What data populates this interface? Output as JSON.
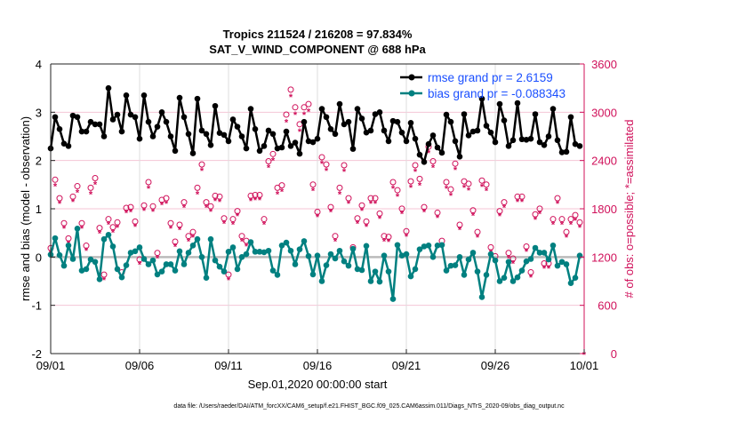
{
  "chart_data": {
    "type": "line",
    "title": "Tropics 211524 / 216208 = 97.834%",
    "subtitle": "SAT_V_WIND_COMPONENT @ 688 hPa",
    "xlabel": "Sep.01,2020 00:00:00 start",
    "ylabel": "rmse and bias (model - observation)",
    "y2label": "# of obs: o=possible; *=assimilated",
    "footer": "data file: /Users/raeder/DAI/ATM_forcXX/CAM6_setup/f.e21.FHIST_BGC.f09_025.CAM6assim.011/Diags_NTrS_2020-09/obs_diag_output.nc",
    "x_unit": "days since 09/01 (6-hourly)",
    "xlim": [
      0,
      30
    ],
    "ylim": [
      -2,
      4
    ],
    "y2lim": [
      0,
      3600
    ],
    "xticks": [
      {
        "v": 0,
        "label": "09/01"
      },
      {
        "v": 5,
        "label": "09/06"
      },
      {
        "v": 10,
        "label": "09/11"
      },
      {
        "v": 15,
        "label": "09/16"
      },
      {
        "v": 20,
        "label": "09/21"
      },
      {
        "v": 25,
        "label": "09/26"
      },
      {
        "v": 30,
        "label": "10/01"
      }
    ],
    "yticks": [
      "-2",
      "-1",
      "0",
      "1",
      "2",
      "3",
      "4"
    ],
    "y2ticks": [
      "0",
      "600",
      "1200",
      "1800",
      "2400",
      "3000",
      "3600"
    ],
    "grid": true,
    "legend_position": "top-right",
    "colors": {
      "rmse": "#000000",
      "bias": "#008080",
      "obs": "#d0105a",
      "legend_text": "#1a4fff",
      "zero_line": "#bbbbbb",
      "grid_h": "#f5c6d6",
      "grid_v": "#dddddd"
    },
    "series": [
      {
        "name": "rmse grand pr = 2.6159",
        "key": "rmse",
        "values": [
          2.25,
          2.9,
          2.65,
          2.35,
          2.3,
          2.93,
          2.9,
          2.6,
          2.6,
          2.8,
          2.75,
          2.75,
          2.5,
          3.5,
          2.85,
          2.95,
          2.6,
          3.35,
          2.95,
          2.9,
          2.45,
          3.35,
          2.8,
          2.5,
          2.7,
          3.0,
          2.8,
          2.5,
          2.2,
          3.3,
          2.9,
          2.55,
          2.15,
          3.28,
          2.62,
          2.55,
          2.32,
          3.13,
          2.57,
          2.53,
          2.4,
          2.85,
          2.7,
          2.5,
          2.25,
          3.07,
          2.65,
          2.2,
          2.3,
          2.62,
          2.55,
          2.25,
          2.27,
          2.6,
          2.3,
          2.37,
          2.14,
          2.8,
          2.4,
          2.38,
          2.45,
          3.07,
          2.9,
          2.65,
          2.55,
          3.17,
          2.75,
          2.8,
          2.24,
          3.07,
          2.87,
          2.58,
          2.62,
          2.96,
          3.0,
          2.62,
          2.4,
          2.82,
          2.8,
          2.58,
          2.4,
          2.78,
          2.45,
          2.12,
          1.97,
          2.34,
          2.52,
          2.27,
          2.16,
          2.95,
          2.8,
          2.4,
          2.08,
          2.96,
          2.52,
          2.6,
          2.62,
          3.28,
          2.72,
          2.58,
          2.38,
          3.17,
          2.83,
          2.3,
          2.42,
          3.19,
          2.44,
          2.43,
          2.45,
          2.96,
          2.38,
          2.32,
          2.5,
          3.07,
          2.42,
          2.17,
          2.18,
          2.9,
          2.34,
          2.3
        ]
      },
      {
        "name": "bias grand pr = -0.088343",
        "key": "bias",
        "values": [
          0.05,
          0.39,
          0.04,
          -0.18,
          0.24,
          -0.04,
          0.59,
          -0.28,
          -0.25,
          -0.05,
          -0.1,
          -0.46,
          0.37,
          0.46,
          0.22,
          -0.25,
          -0.42,
          -0.17,
          0.09,
          0.12,
          0.2,
          -0.04,
          -0.15,
          -0.07,
          -0.36,
          -0.3,
          -0.15,
          -0.15,
          -0.28,
          0.12,
          -0.15,
          0.09,
          0.24,
          0.37,
          0,
          -0.43,
          0.37,
          -0.07,
          -0.2,
          -0.3,
          0.11,
          0.2,
          -0.25,
          0,
          0.06,
          0.31,
          0.11,
          0.11,
          0.1,
          0.13,
          -0.28,
          -0.37,
          0.24,
          0.3,
          0.13,
          -0.15,
          0.16,
          0.33,
          0.02,
          -0.36,
          0.03,
          -0.5,
          -0.17,
          0.06,
          -0.03,
          0.13,
          -0.09,
          -0.18,
          0.17,
          -0.25,
          -0.27,
          0.23,
          -0.5,
          -0.3,
          -0.51,
          0.03,
          -0.3,
          -0.87,
          0.25,
          0.03,
          0.06,
          -0.4,
          -0.25,
          0.16,
          0.22,
          0.24,
          0,
          0.24,
          0.25,
          -0.28,
          -0.18,
          -0.17,
          0,
          -0.37,
          -0.05,
          0.09,
          -0.3,
          -0.83,
          -0.37,
          0.06,
          -0.07,
          -0.5,
          -0.43,
          -0.1,
          -0.5,
          -0.42,
          -0.28,
          -0.09,
          -0.04,
          0.19,
          0.09,
          0.09,
          -0.05,
          0.24,
          -0.18,
          -0.1,
          -0.15,
          -0.54,
          -0.43,
          0.03
        ]
      },
      {
        "key": "obs_possible",
        "axis": "right",
        "marker": "o",
        "values": [
          1300,
          2150,
          1920,
          1610,
          1420,
          1940,
          2070,
          1610,
          1330,
          2050,
          2170,
          1550,
          970,
          1660,
          1560,
          1620,
          1000,
          1800,
          1810,
          1630,
          1160,
          1830,
          2120,
          1820,
          1240,
          1900,
          1920,
          1610,
          1380,
          1590,
          1870,
          1450,
          1500,
          2050,
          2340,
          1870,
          1820,
          1950,
          1940,
          1670,
          970,
          1660,
          1760,
          1450,
          1390,
          1950,
          1960,
          1960,
          1660,
          2380,
          2470,
          2050,
          2080,
          2960,
          3270,
          3050,
          2840,
          3050,
          3090,
          2090,
          1750,
          2430,
          2340,
          1810,
          1450,
          2050,
          2330,
          1920,
          1310,
          1670,
          1830,
          1630,
          1920,
          1920,
          1730,
          1450,
          1440,
          2120,
          2020,
          1790,
          1510,
          2130,
          2330,
          2160,
          1810,
          2560,
          2380,
          1740,
          1390,
          2120,
          2030,
          2350,
          1590,
          2130,
          2100,
          1770,
          1500,
          2140,
          2090,
          1310,
          1200,
          1760,
          1870,
          1240,
          1170,
          1940,
          1940,
          1320,
          1000,
          1720,
          1790,
          1110,
          1110,
          1660,
          1920,
          1660,
          1500,
          1660,
          1710,
          1620,
          0
        ]
      },
      {
        "key": "obs_assimilated",
        "axis": "right",
        "marker": "*",
        "values": [
          1260,
          2095,
          1880,
          1570,
          1380,
          1900,
          2015,
          1570,
          1290,
          1995,
          2115,
          1510,
          930,
          1620,
          1520,
          1580,
          960,
          1760,
          1770,
          1590,
          1120,
          1790,
          2065,
          1780,
          1200,
          1860,
          1880,
          1570,
          1340,
          1550,
          1830,
          1410,
          1460,
          1995,
          2285,
          1830,
          1780,
          1910,
          1900,
          1630,
          930,
          1620,
          1720,
          1410,
          1350,
          1910,
          1920,
          1920,
          1620,
          2325,
          2415,
          1995,
          2025,
          2890,
          3200,
          2980,
          2770,
          2980,
          3020,
          2035,
          1710,
          2375,
          2285,
          1770,
          1410,
          1995,
          2275,
          1880,
          1270,
          1630,
          1790,
          1590,
          1880,
          1880,
          1690,
          1410,
          1400,
          2065,
          1965,
          1750,
          1470,
          2075,
          2275,
          2105,
          1770,
          2505,
          2325,
          1700,
          1350,
          2065,
          1975,
          2295,
          1550,
          2075,
          2045,
          1730,
          1460,
          2085,
          2035,
          1270,
          1160,
          1720,
          1830,
          1200,
          1130,
          1900,
          1900,
          1280,
          960,
          1680,
          1750,
          1070,
          1070,
          1620,
          1880,
          1620,
          1460,
          1620,
          1670,
          1580,
          0
        ]
      }
    ]
  }
}
